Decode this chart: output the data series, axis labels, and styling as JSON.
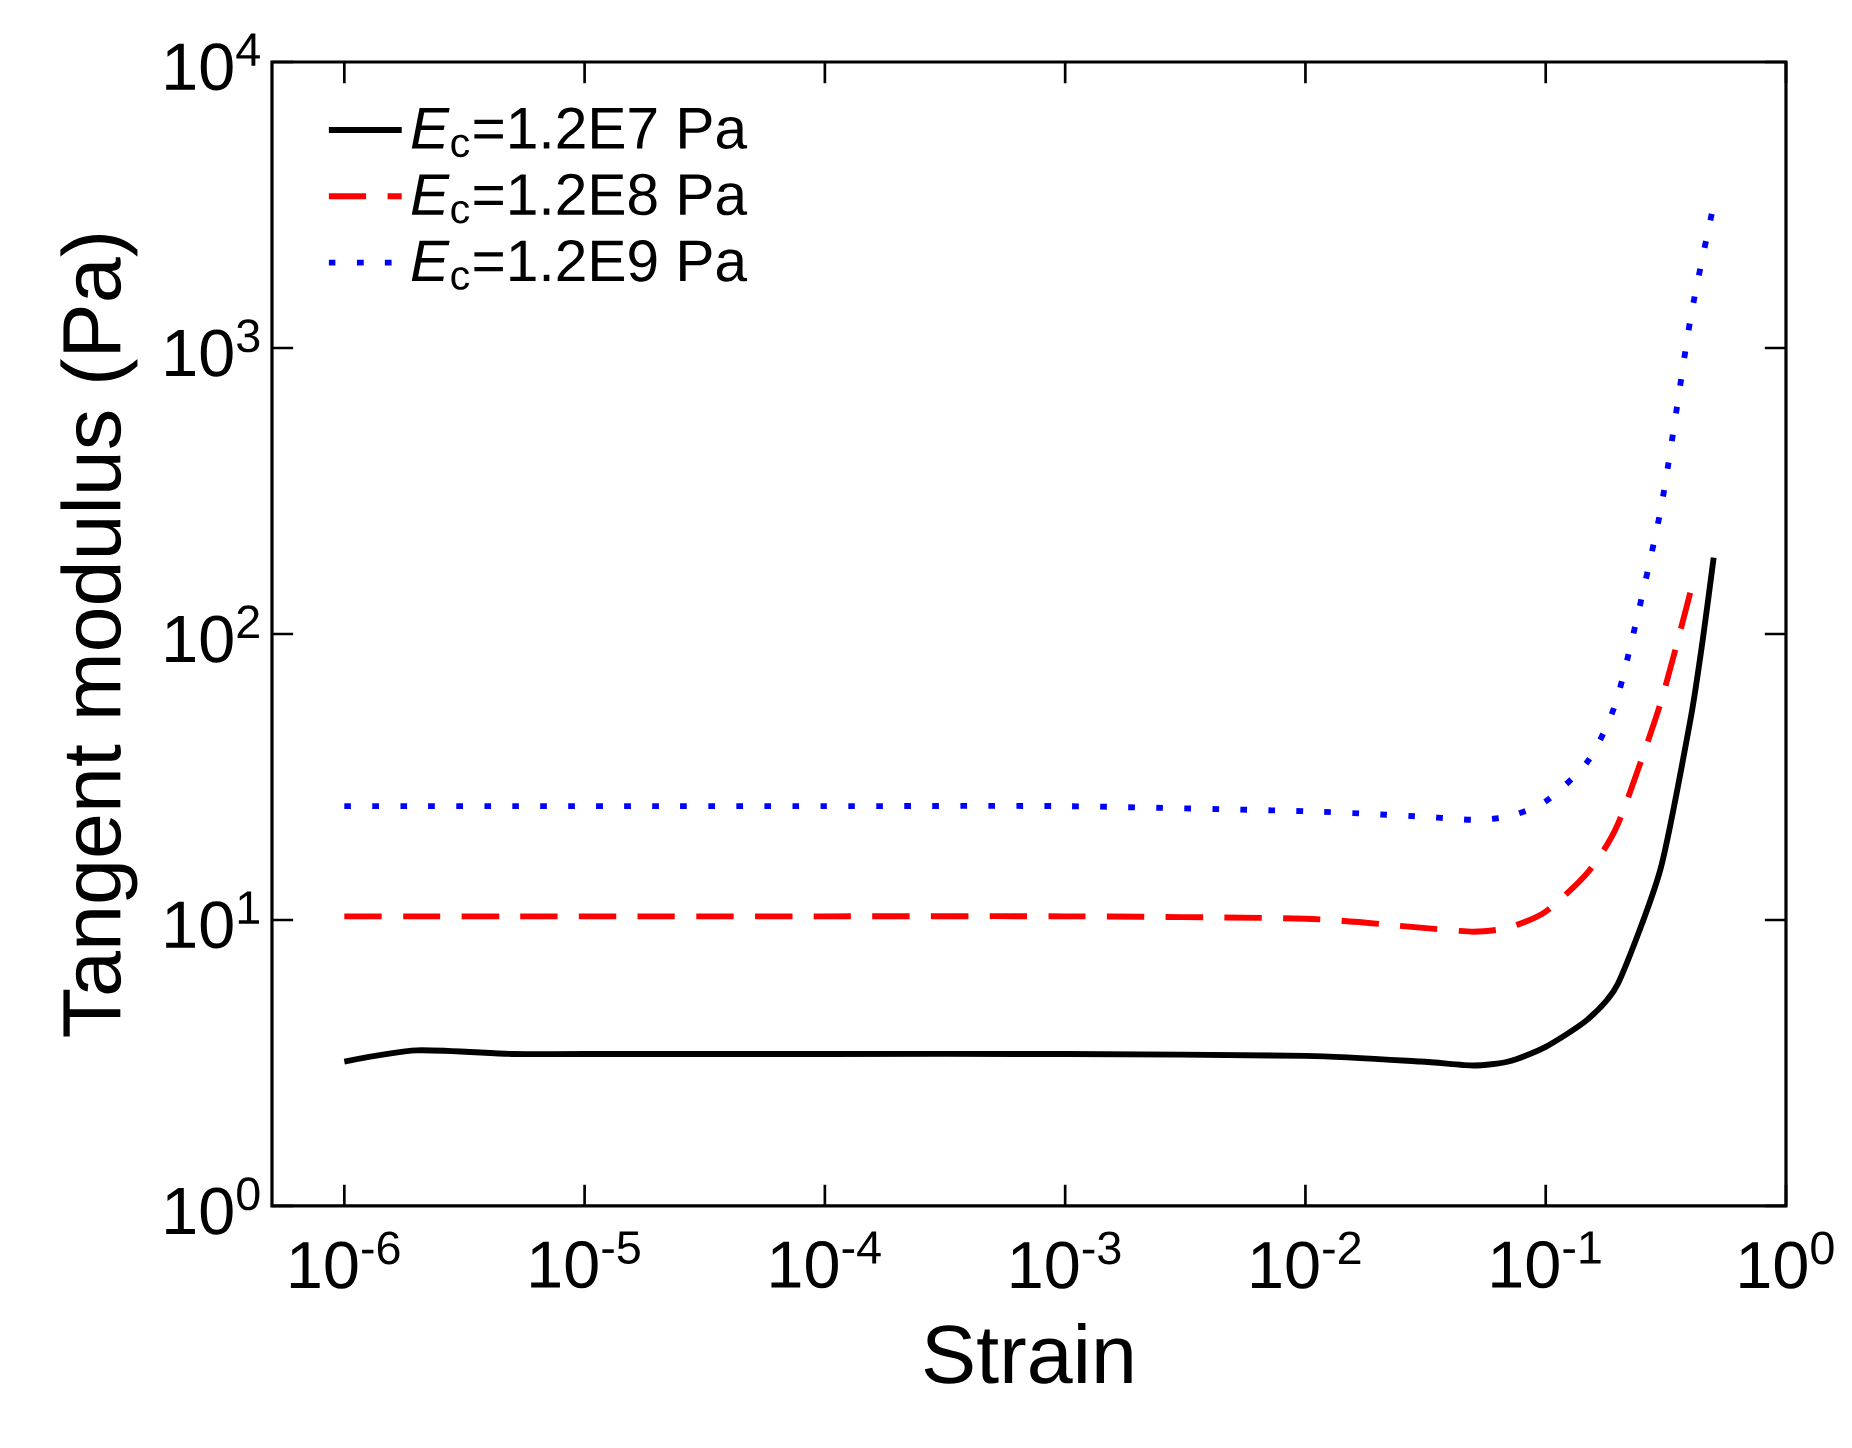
{
  "chart_data": {
    "type": "line",
    "xlabel": "Strain",
    "ylabel": "Tangent modulus (Pa)",
    "log": "xy",
    "legend": "top left",
    "marker": "none",
    "xlim": [
      5e-07,
      1
    ],
    "ylim": [
      1,
      10000
    ],
    "xticks": [
      {
        "value": 1e-06,
        "label": "10$^{-6}$"
      },
      {
        "value": 1e-05,
        "label": "10$^{-5}$"
      },
      {
        "value": 0.0001,
        "label": "10$^{-4}$"
      },
      {
        "value": 0.001,
        "label": "10$^{-3}$"
      },
      {
        "value": 0.01,
        "label": "10$^{-2}$"
      },
      {
        "value": 0.1,
        "label": "10$^{-1}$"
      },
      {
        "value": 1,
        "label": "10$^{0}$"
      }
    ],
    "yticks": [
      {
        "value": 1,
        "label": "10$^{0}$"
      },
      {
        "value": 10,
        "label": "10$^{1}$"
      },
      {
        "value": 100,
        "label": "10$^{2}$"
      },
      {
        "value": 1000,
        "label": "10$^{3}$"
      },
      {
        "value": 10000,
        "label": "10$^{4}$"
      }
    ],
    "x": [
      1e-06,
      2e-06,
      5e-06,
      1e-05,
      0.0001,
      0.001,
      0.01,
      0.03,
      0.05,
      0.07,
      0.1,
      0.15,
      0.2,
      0.3,
      0.4,
      0.45,
      0.5
    ],
    "series": [
      {
        "name": "*E*$_{c}$=1.2E7 Pa",
        "color": "#000000",
        "line_style": "solid",
        "values": [
          3.2,
          3.5,
          3.4,
          3.4,
          3.4,
          3.4,
          3.35,
          3.2,
          3.1,
          3.2,
          3.6,
          4.5,
          6,
          15,
          50,
          95,
          185
        ]
      },
      {
        "name": "*E*$_{c}$=1.2E8 Pa",
        "color": "#ff0000",
        "line_style": "dashed",
        "values": [
          10.3,
          10.3,
          10.3,
          10.3,
          10.3,
          10.3,
          10.1,
          9.4,
          9.1,
          9.4,
          10.7,
          14.7,
          21.7,
          57,
          140,
          null,
          null
        ]
      },
      {
        "name": "*E*$_{c}$=1.2E9 Pa",
        "color": "#0000ff",
        "line_style": "dotted",
        "values": [
          25,
          25,
          25,
          25,
          25,
          25,
          24,
          23,
          22.4,
          23,
          26,
          36,
          61,
          268,
          1260,
          null,
          3160
        ]
      }
    ]
  }
}
